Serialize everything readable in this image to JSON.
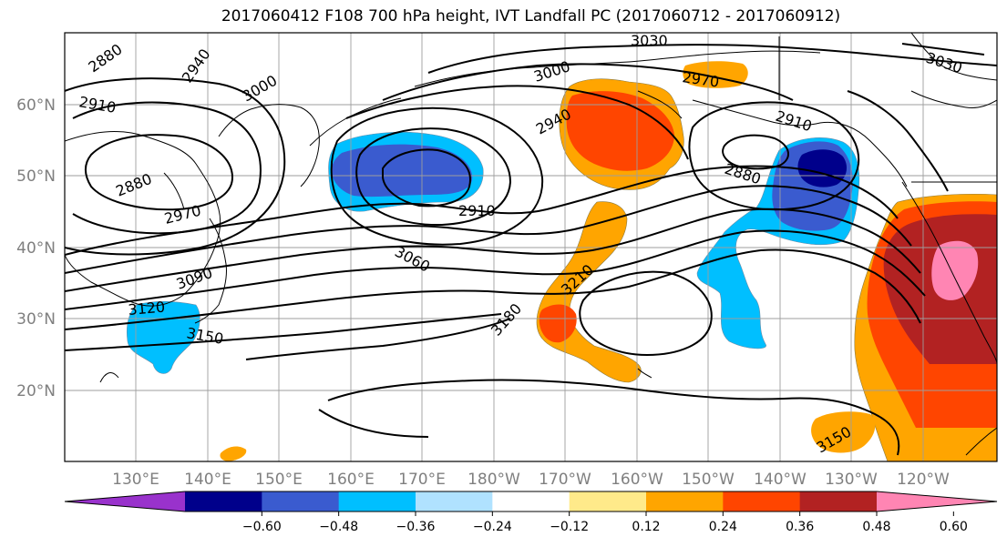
{
  "title": "2017060412 F108 700 hPa height, IVT Landfall PC (2017060712 - 2017060912)",
  "lat_labels": [
    {
      "text": "60°N",
      "lat": 60
    },
    {
      "text": "50°N",
      "lat": 50
    },
    {
      "text": "40°N",
      "lat": 40
    },
    {
      "text": "30°N",
      "lat": 30
    },
    {
      "text": "20°N",
      "lat": 20
    }
  ],
  "lon_labels": [
    {
      "text": "130°E",
      "lon": 130
    },
    {
      "text": "140°E",
      "lon": 140
    },
    {
      "text": "150°E",
      "lon": 150
    },
    {
      "text": "160°E",
      "lon": 160
    },
    {
      "text": "170°E",
      "lon": 170
    },
    {
      "text": "180°W",
      "lon": 180
    },
    {
      "text": "170°W",
      "lon": 190
    },
    {
      "text": "160°W",
      "lon": 200
    },
    {
      "text": "150°W",
      "lon": 210
    },
    {
      "text": "140°W",
      "lon": 220
    },
    {
      "text": "130°W",
      "lon": 230
    },
    {
      "text": "120°W",
      "lon": 240
    }
  ],
  "contour_labels": [
    {
      "text": "2880"
    },
    {
      "text": "2940"
    },
    {
      "text": "3000"
    },
    {
      "text": "3030"
    },
    {
      "text": "3000"
    },
    {
      "text": "2970"
    },
    {
      "text": "3030"
    },
    {
      "text": "2910"
    },
    {
      "text": "2940"
    },
    {
      "text": "2910"
    },
    {
      "text": "2880"
    },
    {
      "text": "2880"
    },
    {
      "text": "2970"
    },
    {
      "text": "2910"
    },
    {
      "text": "3060"
    },
    {
      "text": "3090"
    },
    {
      "text": "3120"
    },
    {
      "text": "3150"
    },
    {
      "text": "3180"
    },
    {
      "text": "3210"
    },
    {
      "text": "3150"
    }
  ],
  "colorbar": {
    "colors": [
      "#9932cc",
      "#00008b",
      "#3a5bcf",
      "#00bfff",
      "#b0e2ff",
      "#ffffff",
      "#ffea8a",
      "#ffa500",
      "#ff4500",
      "#b22222",
      "#ff85b3"
    ],
    "ticks": [
      "−0.60",
      "−0.48",
      "−0.36",
      "−0.24",
      "−0.12",
      "0.12",
      "0.24",
      "0.36",
      "0.48",
      "0.60"
    ]
  }
}
